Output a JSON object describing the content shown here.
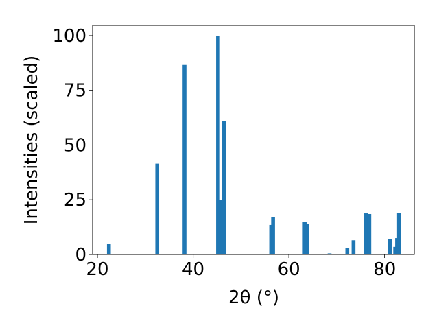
{
  "chart_data": {
    "type": "bar",
    "xlabel": "2θ (°)",
    "ylabel": "Intensities (scaled)",
    "x": [
      22.4,
      32.5,
      38.2,
      45.2,
      45.9,
      46.4,
      56.3,
      56.7,
      63.3,
      63.8,
      67.8,
      68.5,
      72.2,
      73.5,
      76.1,
      76.8,
      81.1,
      82.2,
      82.6,
      83.0
    ],
    "values": [
      5,
      41.5,
      86.6,
      100,
      25,
      61,
      13.5,
      17,
      14.8,
      14,
      0.3,
      0.5,
      3,
      6.5,
      18.8,
      18.5,
      7,
      3.5,
      7.5,
      19
    ],
    "color": "#1f77b4",
    "xlim": [
      19,
      86.2
    ],
    "ylim": [
      0,
      104.7
    ],
    "xticks": [
      20,
      40,
      60,
      80
    ],
    "yticks": [
      0,
      25,
      50,
      75,
      100
    ]
  }
}
